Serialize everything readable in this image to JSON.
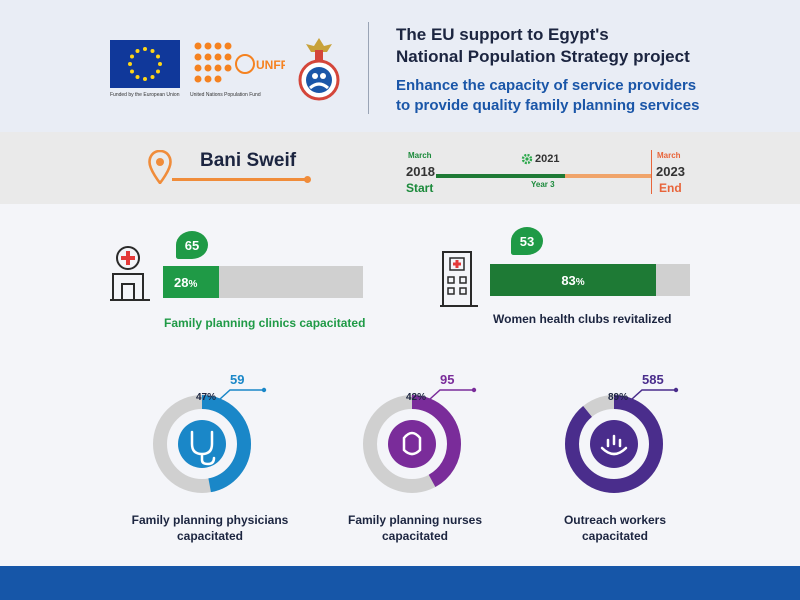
{
  "header": {
    "title_line1": "The EU support to Egypt's",
    "title_line2": "National Population Strategy project",
    "subtitle_line1": "Enhance the capacity of service providers",
    "subtitle_line2": "to provide quality family planning services",
    "eu_caption": "Funded by the European Union",
    "unfpa_caption": "United Nations Population Fund",
    "unfpa_logo_text": "UNFPA"
  },
  "location": {
    "governorate": "Bani Sweif"
  },
  "timeline": {
    "start_month": "March",
    "start_year": "2018",
    "start_label": "Start",
    "current_year": "2021",
    "current_label": "Year 3",
    "end_month": "March",
    "end_year": "2023",
    "end_label": "End",
    "progress_fraction": 0.6
  },
  "bars": [
    {
      "count": "65",
      "percent": "28",
      "unit": "%",
      "label": "Family planning clinics capacitated",
      "fraction": 0.28,
      "color": "#1f9a46"
    },
    {
      "count": "53",
      "percent": "83",
      "unit": "%",
      "label": "Women health clubs revitalized",
      "fraction": 0.83,
      "color": "#1e7a35"
    }
  ],
  "donuts": [
    {
      "count": "59",
      "percent": "47",
      "unit": "%",
      "label_line1": "Family planning physicians",
      "label_line2": "capacitated",
      "fraction": 0.47,
      "color": "#1a87c8",
      "icon": "stethoscope-icon"
    },
    {
      "count": "95",
      "percent": "42",
      "unit": "%",
      "label_line1": "Family planning nurses",
      "label_line2": "capacitated",
      "fraction": 0.42,
      "color": "#7a2c9a",
      "icon": "nurse-icon"
    },
    {
      "count": "585",
      "percent": "89",
      "unit": "%",
      "label_line1": "Outreach workers",
      "label_line2": "capacitated",
      "fraction": 0.89,
      "color": "#4a2d8c",
      "icon": "family-care-icon"
    }
  ],
  "colors": {
    "track": "#d0d0d0",
    "green": "#1f9a46",
    "orange": "#e8643a",
    "navy": "#1656a8"
  }
}
